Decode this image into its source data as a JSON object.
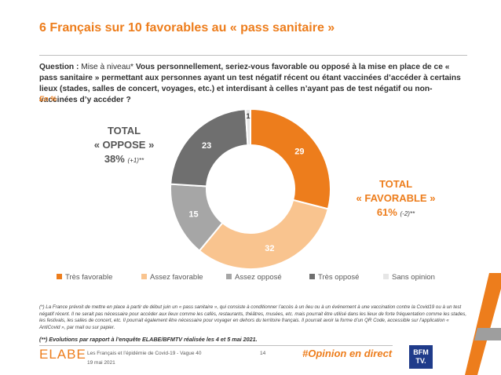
{
  "header": {
    "title": "6 Français sur 10 favorables au « pass sanitaire »"
  },
  "question": {
    "prefix": "Question : ",
    "note": "Mise à niveau* ",
    "text": "Vous personnellement, seriez-vous favorable ou opposé à la mise en place de ce « pass sanitaire » permettant aux personnes ayant un test négatif récent ou étant vaccinées d’accéder à certains lieux (stades, salles de concert, voyages, etc.) et interdisant à celles n’ayant pas de test négatif ou non-vaccinées d’y accéder ?",
    "unit": "En %"
  },
  "totals": {
    "oppose": {
      "line1": "TOTAL",
      "line2": "« OPPOSE »",
      "pct": "38%",
      "evolution": "(+1)**"
    },
    "favorable": {
      "line1": "TOTAL",
      "line2": "« FAVORABLE »",
      "pct": "61%",
      "evolution": "(-2)**"
    }
  },
  "chart_data": {
    "type": "pie",
    "variant": "donut",
    "start_angle_deg": 0,
    "direction": "clockwise",
    "series": [
      {
        "name": "Très favorable",
        "value": 29,
        "color": "#ed7d1c",
        "label": "29",
        "label_color": "#ffffff"
      },
      {
        "name": "Assez favorable",
        "value": 32,
        "color": "#f9c48f",
        "label": "32",
        "label_color": "#ffffff"
      },
      {
        "name": "Assez opposé",
        "value": 15,
        "color": "#a6a6a6",
        "label": "15",
        "label_color": "#ffffff"
      },
      {
        "name": "Très opposé",
        "value": 23,
        "color": "#6f6f6f",
        "label": "23",
        "label_color": "#ffffff"
      },
      {
        "name": "Sans opinion",
        "value": 1,
        "color": "#e6e6e6",
        "label": "1",
        "label_color": "#3a3a3a"
      }
    ],
    "legend_position": "bottom"
  },
  "footnote": "(*) La France prévoit de mettre en place à partir de début juin un « pass sanitaire », qui consiste à conditionner l’accès à un lieu ou à un événement à une vaccination contre la Covid19 ou à un test négatif récent. Il ne serait pas nécessaire pour accéder aux lieux comme les cafés, restaurants, théâtres, musées, etc. mais pourrait être utilisé dans les lieux de forte fréquentation comme les stades, les festivals, les salles de concert, etc. Il pourrait également être nécessaire pour voyager en dehors du territoire français. Il pourrait avoir la forme d’un QR Code, accessible sur l’application « AntiCovid », par mail ou sur papier.",
  "evolution_note": "(**) Evolutions par rapport à l’enquête ELABE/BFMTV réalisée les 4 et 5 mai 2021.",
  "footer": {
    "logo": "ELABE",
    "survey": "Les Français et l’épidémie de Covid-19 - Vague 40",
    "date": "19 mai 2021",
    "page": "14",
    "hashtag": "#Opinion en direct",
    "bfm_line1": "BFM",
    "bfm_line2": "TV."
  }
}
